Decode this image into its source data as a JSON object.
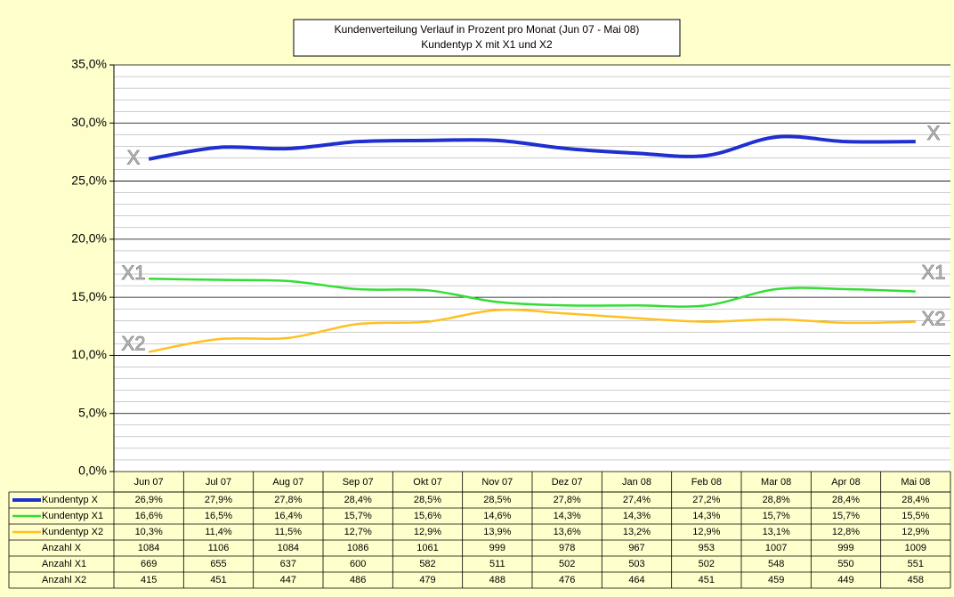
{
  "chart_data": {
    "type": "line",
    "title": "Kundenverteilung Verlauf in Prozent pro Monat (Jun 07 - Mai 08)",
    "subtitle": "Kundentyp X mit X1 und X2",
    "categories": [
      "Jun 07",
      "Jul 07",
      "Aug 07",
      "Sep 07",
      "Okt 07",
      "Nov 07",
      "Dez 07",
      "Jan 08",
      "Feb 08",
      "Mar 08",
      "Apr 08",
      "Mai 08"
    ],
    "ylim": [
      0,
      35
    ],
    "yticks": [
      {
        "value": 0,
        "label": "0,0%"
      },
      {
        "value": 5,
        "label": "5,0%"
      },
      {
        "value": 10,
        "label": "10,0%"
      },
      {
        "value": 15,
        "label": "15,0%"
      },
      {
        "value": 20,
        "label": "20,0%"
      },
      {
        "value": 25,
        "label": "25,0%"
      },
      {
        "value": 30,
        "label": "30,0%"
      },
      {
        "value": 35,
        "label": "35,0%"
      }
    ],
    "minor_yticks": [
      1,
      2,
      3,
      4,
      6,
      7,
      8,
      9,
      11,
      12,
      13,
      14,
      16,
      17,
      18,
      19,
      21,
      22,
      23,
      24,
      26,
      27,
      28,
      29,
      31,
      32,
      33,
      34
    ],
    "grid": true,
    "series": [
      {
        "name": "Kundentyp X",
        "label": "X",
        "color": "#1f2fd0",
        "values": [
          26.9,
          27.9,
          27.8,
          28.4,
          28.5,
          28.5,
          27.8,
          27.4,
          27.2,
          28.8,
          28.4,
          28.4
        ],
        "value_labels": [
          "26,9%",
          "27,9%",
          "27,8%",
          "28,4%",
          "28,5%",
          "28,5%",
          "27,8%",
          "27,4%",
          "27,2%",
          "28,8%",
          "28,4%",
          "28,4%"
        ]
      },
      {
        "name": "Kundentyp X1",
        "label": "X1",
        "color": "#33dd33",
        "values": [
          16.6,
          16.5,
          16.4,
          15.7,
          15.6,
          14.6,
          14.3,
          14.3,
          14.3,
          15.7,
          15.7,
          15.5
        ],
        "value_labels": [
          "16,6%",
          "16,5%",
          "16,4%",
          "15,7%",
          "15,6%",
          "14,6%",
          "14,3%",
          "14,3%",
          "14,3%",
          "15,7%",
          "15,7%",
          "15,5%"
        ]
      },
      {
        "name": "Kundentyp X2",
        "label": "X2",
        "color": "#ffc020",
        "values": [
          10.3,
          11.4,
          11.5,
          12.7,
          12.9,
          13.9,
          13.6,
          13.2,
          12.9,
          13.1,
          12.8,
          12.9
        ],
        "value_labels": [
          "10,3%",
          "11,4%",
          "11,5%",
          "12,7%",
          "12,9%",
          "13,9%",
          "13,6%",
          "13,2%",
          "12,9%",
          "13,1%",
          "12,8%",
          "12,9%"
        ]
      }
    ],
    "table_rows": [
      {
        "name": "Anzahl X",
        "values": [
          1084,
          1106,
          1084,
          1086,
          1061,
          999,
          978,
          967,
          953,
          1007,
          999,
          1009
        ]
      },
      {
        "name": "Anzahl X1",
        "values": [
          669,
          655,
          637,
          600,
          582,
          511,
          502,
          503,
          502,
          548,
          550,
          551
        ]
      },
      {
        "name": "Anzahl X2",
        "values": [
          415,
          451,
          447,
          486,
          479,
          488,
          476,
          464,
          451,
          459,
          449,
          458
        ]
      }
    ]
  }
}
